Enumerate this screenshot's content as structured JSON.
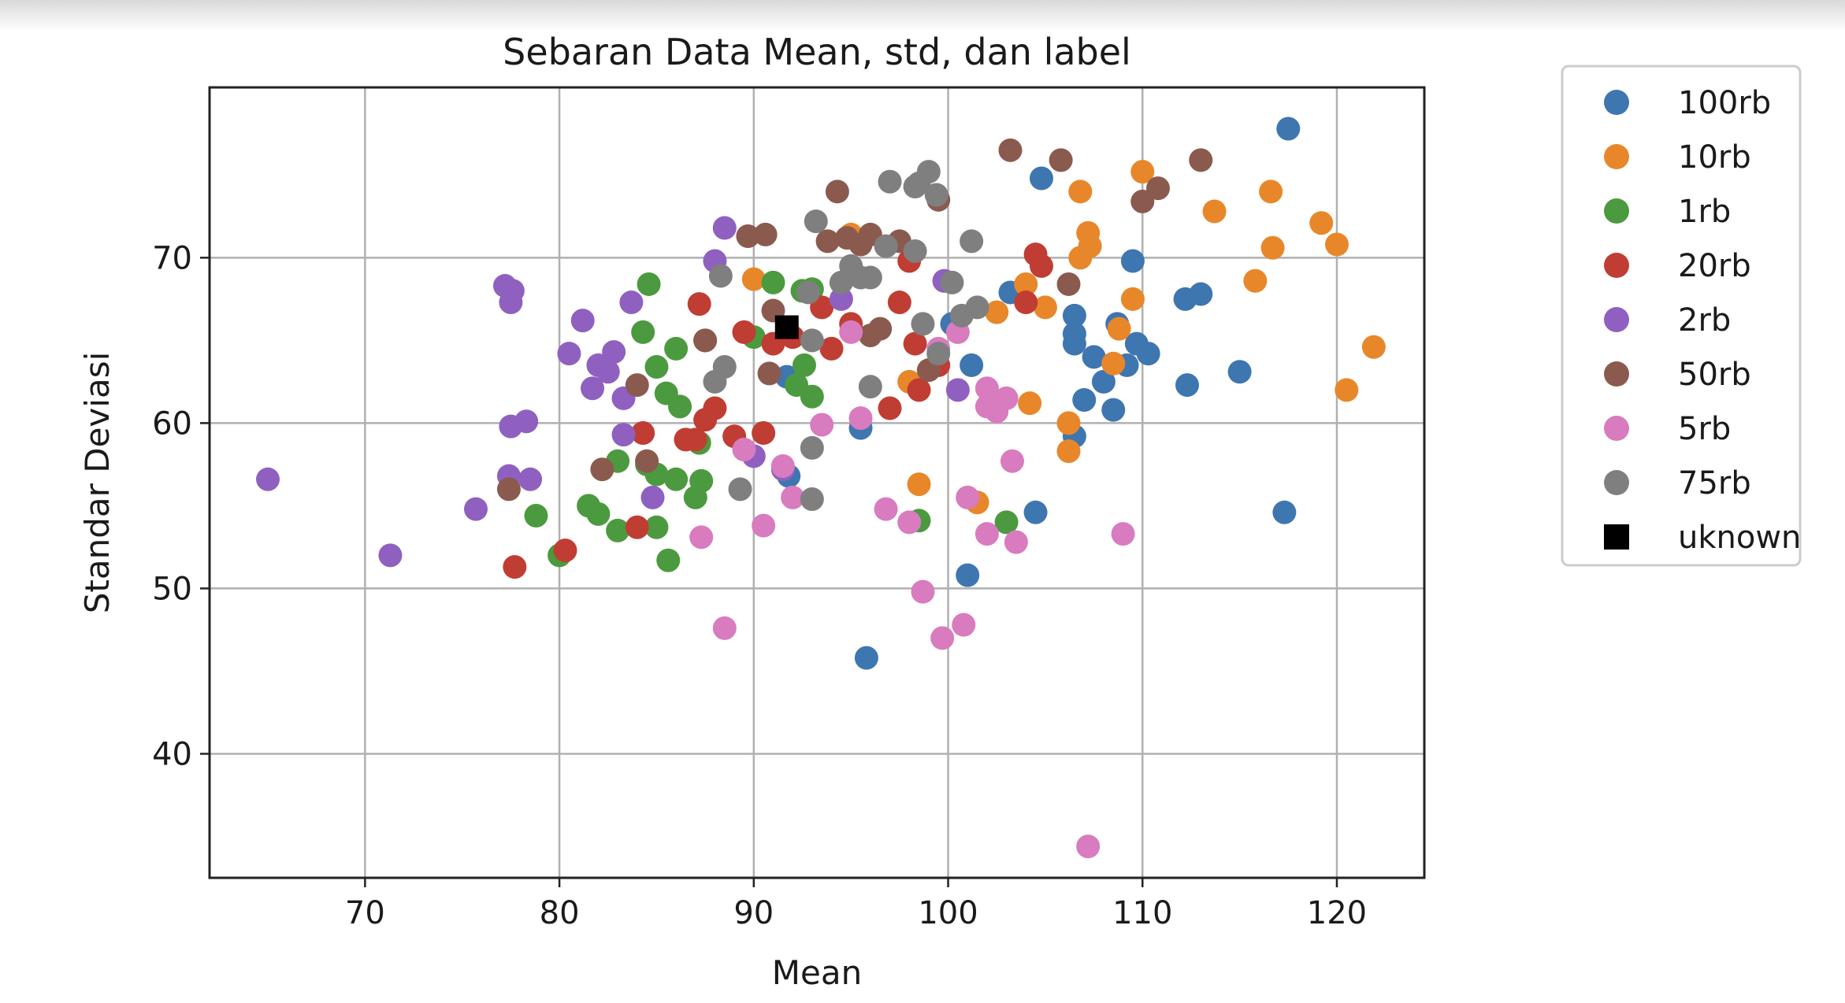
{
  "chart_data": {
    "type": "scatter",
    "title": "Sebaran Data Mean, std, dan label",
    "xlabel": "Mean",
    "ylabel": "Standar Deviasi",
    "xlim": [
      62,
      124.5
    ],
    "ylim": [
      32.5,
      80.3
    ],
    "xticks": [
      "70",
      "80",
      "90",
      "100",
      "110",
      "120"
    ],
    "yticks": [
      "40",
      "50",
      "60",
      "70"
    ],
    "grid": true,
    "legend_position": "outside-right-top",
    "series": [
      {
        "name": "100rb",
        "color": "#3e76b0",
        "marker": "circle",
        "points": [
          [
            117.5,
            77.8
          ],
          [
            104.8,
            74.8
          ],
          [
            103.2,
            67.9
          ],
          [
            109.5,
            69.8
          ],
          [
            106.5,
            66.5
          ],
          [
            106.5,
            65.4
          ],
          [
            106.5,
            64.8
          ],
          [
            108.7,
            66.0
          ],
          [
            109.7,
            64.8
          ],
          [
            110.3,
            64.2
          ],
          [
            109.2,
            63.5
          ],
          [
            107.5,
            64.0
          ],
          [
            108.0,
            62.5
          ],
          [
            107.0,
            61.4
          ],
          [
            106.5,
            59.2
          ],
          [
            108.5,
            60.8
          ],
          [
            112.2,
            67.5
          ],
          [
            113.0,
            67.8
          ],
          [
            112.3,
            62.3
          ],
          [
            115.0,
            63.1
          ],
          [
            117.3,
            54.6
          ],
          [
            104.5,
            54.6
          ],
          [
            101.2,
            63.5
          ],
          [
            100.2,
            66.0
          ],
          [
            95.5,
            59.7
          ],
          [
            91.8,
            56.8
          ],
          [
            101.0,
            50.8
          ],
          [
            95.8,
            45.8
          ],
          [
            91.7,
            62.8
          ]
        ]
      },
      {
        "name": "10rb",
        "color": "#e8872a",
        "marker": "circle",
        "points": [
          [
            110.0,
            75.2
          ],
          [
            106.8,
            74.0
          ],
          [
            107.2,
            71.5
          ],
          [
            107.3,
            70.7
          ],
          [
            106.8,
            70.0
          ],
          [
            113.7,
            72.8
          ],
          [
            116.6,
            74.0
          ],
          [
            119.2,
            72.1
          ],
          [
            120.0,
            70.8
          ],
          [
            116.7,
            70.6
          ],
          [
            115.8,
            68.6
          ],
          [
            109.5,
            67.5
          ],
          [
            108.8,
            65.7
          ],
          [
            105.0,
            67.0
          ],
          [
            104.0,
            68.4
          ],
          [
            102.5,
            66.7
          ],
          [
            99.8,
            68.6
          ],
          [
            108.5,
            63.6
          ],
          [
            104.2,
            61.2
          ],
          [
            106.2,
            60.0
          ],
          [
            106.2,
            58.3
          ],
          [
            121.9,
            64.6
          ],
          [
            120.5,
            62.0
          ],
          [
            98.5,
            56.3
          ],
          [
            101.5,
            55.2
          ],
          [
            90.0,
            68.7
          ],
          [
            95.0,
            71.4
          ],
          [
            98.0,
            62.5
          ]
        ]
      },
      {
        "name": "1rb",
        "color": "#4c9a3f",
        "marker": "circle",
        "points": [
          [
            84.6,
            68.4
          ],
          [
            91.0,
            68.5
          ],
          [
            92.5,
            68.0
          ],
          [
            93.0,
            68.1
          ],
          [
            84.3,
            65.5
          ],
          [
            86.0,
            64.5
          ],
          [
            85.0,
            63.4
          ],
          [
            92.6,
            63.5
          ],
          [
            92.2,
            62.3
          ],
          [
            93.0,
            61.6
          ],
          [
            85.5,
            61.8
          ],
          [
            86.2,
            61.0
          ],
          [
            87.2,
            58.8
          ],
          [
            87.3,
            56.5
          ],
          [
            84.5,
            57.5
          ],
          [
            85.0,
            56.9
          ],
          [
            86.0,
            56.6
          ],
          [
            87.0,
            55.5
          ],
          [
            85.0,
            53.7
          ],
          [
            83.0,
            57.7
          ],
          [
            83.0,
            53.5
          ],
          [
            82.0,
            54.5
          ],
          [
            81.5,
            55.0
          ],
          [
            78.8,
            54.4
          ],
          [
            80.0,
            52.0
          ],
          [
            85.6,
            51.7
          ],
          [
            98.5,
            54.1
          ],
          [
            103.0,
            54.0
          ],
          [
            90.0,
            65.2
          ]
        ]
      },
      {
        "name": "20rb",
        "color": "#c03d33",
        "marker": "circle",
        "points": [
          [
            104.5,
            70.2
          ],
          [
            104.8,
            69.5
          ],
          [
            104.0,
            67.3
          ],
          [
            98.0,
            69.8
          ],
          [
            97.5,
            67.3
          ],
          [
            93.5,
            67.0
          ],
          [
            87.2,
            67.2
          ],
          [
            87.5,
            65.0
          ],
          [
            89.5,
            65.5
          ],
          [
            91.0,
            64.8
          ],
          [
            94.0,
            64.5
          ],
          [
            98.3,
            64.8
          ],
          [
            98.5,
            62.0
          ],
          [
            99.5,
            63.5
          ],
          [
            97.0,
            60.9
          ],
          [
            88.0,
            60.9
          ],
          [
            87.5,
            60.2
          ],
          [
            87.0,
            59.0
          ],
          [
            86.5,
            59.0
          ],
          [
            89.0,
            59.2
          ],
          [
            90.5,
            59.4
          ],
          [
            84.3,
            59.4
          ],
          [
            84.0,
            53.7
          ],
          [
            80.3,
            52.3
          ],
          [
            77.7,
            51.3
          ],
          [
            92.0,
            65.2
          ],
          [
            95.0,
            66.0
          ]
        ]
      },
      {
        "name": "2rb",
        "color": "#8f60c0",
        "marker": "circle",
        "points": [
          [
            88.5,
            71.8
          ],
          [
            88.0,
            69.8
          ],
          [
            83.7,
            67.3
          ],
          [
            77.2,
            68.3
          ],
          [
            77.6,
            68.0
          ],
          [
            77.5,
            67.3
          ],
          [
            81.2,
            66.2
          ],
          [
            80.5,
            64.2
          ],
          [
            82.0,
            63.5
          ],
          [
            82.8,
            64.3
          ],
          [
            82.5,
            63.1
          ],
          [
            81.7,
            62.1
          ],
          [
            83.3,
            61.5
          ],
          [
            83.3,
            59.3
          ],
          [
            77.5,
            59.8
          ],
          [
            78.3,
            60.1
          ],
          [
            77.4,
            56.8
          ],
          [
            78.5,
            56.6
          ],
          [
            75.7,
            54.8
          ],
          [
            71.3,
            52.0
          ],
          [
            65.0,
            56.6
          ],
          [
            84.8,
            55.5
          ],
          [
            94.5,
            67.5
          ],
          [
            99.8,
            68.6
          ],
          [
            100.5,
            62.0
          ],
          [
            91.5,
            57.2
          ],
          [
            90.0,
            58.0
          ]
        ]
      },
      {
        "name": "50rb",
        "color": "#8b5a4f",
        "marker": "circle",
        "points": [
          [
            103.2,
            76.5
          ],
          [
            105.8,
            75.9
          ],
          [
            113.0,
            75.9
          ],
          [
            110.8,
            74.2
          ],
          [
            110.0,
            73.4
          ],
          [
            94.3,
            74.0
          ],
          [
            99.5,
            73.5
          ],
          [
            96.0,
            71.4
          ],
          [
            93.8,
            71.0
          ],
          [
            95.5,
            70.8
          ],
          [
            97.5,
            71.0
          ],
          [
            89.7,
            71.3
          ],
          [
            90.6,
            71.4
          ],
          [
            106.2,
            68.4
          ],
          [
            91.0,
            66.8
          ],
          [
            96.5,
            65.7
          ],
          [
            96.0,
            65.3
          ],
          [
            87.5,
            65.0
          ],
          [
            90.8,
            63.0
          ],
          [
            84.0,
            62.3
          ],
          [
            84.5,
            57.7
          ],
          [
            82.2,
            57.2
          ],
          [
            77.4,
            56.0
          ],
          [
            99.0,
            63.2
          ],
          [
            94.8,
            71.2
          ]
        ]
      },
      {
        "name": "5rb",
        "color": "#d87bbf",
        "marker": "circle",
        "points": [
          [
            100.5,
            65.5
          ],
          [
            95.0,
            65.5
          ],
          [
            102.0,
            62.1
          ],
          [
            103.0,
            61.5
          ],
          [
            102.0,
            61.0
          ],
          [
            102.5,
            60.7
          ],
          [
            93.5,
            59.9
          ],
          [
            95.5,
            60.3
          ],
          [
            89.5,
            58.4
          ],
          [
            91.5,
            57.4
          ],
          [
            103.3,
            57.7
          ],
          [
            101.0,
            55.5
          ],
          [
            92.0,
            55.5
          ],
          [
            96.8,
            54.8
          ],
          [
            98.0,
            54.0
          ],
          [
            90.5,
            53.8
          ],
          [
            87.3,
            53.1
          ],
          [
            102.0,
            53.3
          ],
          [
            103.5,
            52.8
          ],
          [
            109.0,
            53.3
          ],
          [
            98.7,
            49.8
          ],
          [
            100.8,
            47.8
          ],
          [
            99.7,
            47.0
          ],
          [
            88.5,
            47.6
          ],
          [
            107.2,
            34.4
          ],
          [
            99.5,
            64.5
          ]
        ]
      },
      {
        "name": "75rb",
        "color": "#7f7f7f",
        "marker": "circle",
        "points": [
          [
            99.0,
            75.2
          ],
          [
            98.5,
            74.5
          ],
          [
            97.0,
            74.6
          ],
          [
            98.3,
            74.3
          ],
          [
            99.4,
            73.8
          ],
          [
            93.2,
            72.2
          ],
          [
            101.2,
            71.0
          ],
          [
            96.8,
            70.7
          ],
          [
            98.3,
            70.4
          ],
          [
            95.0,
            69.5
          ],
          [
            95.5,
            68.8
          ],
          [
            96.0,
            68.8
          ],
          [
            94.5,
            68.5
          ],
          [
            100.2,
            68.5
          ],
          [
            92.8,
            67.9
          ],
          [
            88.3,
            68.9
          ],
          [
            101.5,
            67.0
          ],
          [
            98.7,
            66.0
          ],
          [
            100.7,
            66.5
          ],
          [
            93.0,
            65.0
          ],
          [
            88.5,
            63.4
          ],
          [
            88.0,
            62.5
          ],
          [
            96.0,
            62.2
          ],
          [
            93.0,
            58.5
          ],
          [
            89.3,
            56.0
          ],
          [
            93.0,
            55.4
          ],
          [
            99.5,
            64.2
          ]
        ]
      },
      {
        "name": "uknown",
        "color": "#000000",
        "marker": "square",
        "points": [
          [
            91.7,
            65.8
          ]
        ]
      }
    ]
  }
}
